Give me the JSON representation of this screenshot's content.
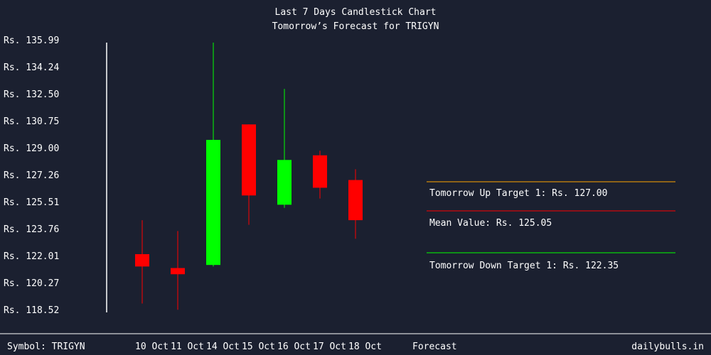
{
  "chart_data": {
    "type": "candlestick",
    "title": "Last 7 Days Candlestick Chart",
    "subtitle": "Tomorrow’s Forecast for TRIGYN",
    "y_ticks": [
      "Rs. 135.99",
      "Rs. 134.24",
      "Rs. 132.50",
      "Rs. 130.75",
      "Rs. 129.00",
      "Rs. 127.26",
      "Rs. 125.51",
      "Rs. 123.76",
      "Rs. 122.01",
      "Rs. 120.27",
      "Rs. 118.52"
    ],
    "ylim": [
      118.52,
      135.99
    ],
    "categories": [
      "10 Oct",
      "11 Oct",
      "14 Oct",
      "15 Oct",
      "16 Oct",
      "17 Oct",
      "18 Oct"
    ],
    "candles": [
      {
        "date": "10 Oct",
        "open": 122.2,
        "high": 124.4,
        "low": 119.0,
        "close": 121.4
      },
      {
        "date": "11 Oct",
        "open": 121.3,
        "high": 123.7,
        "low": 118.6,
        "close": 120.9
      },
      {
        "date": "14 Oct",
        "open": 121.5,
        "high": 135.9,
        "low": 121.4,
        "close": 129.6
      },
      {
        "date": "15 Oct",
        "open": 130.6,
        "high": 130.6,
        "low": 124.1,
        "close": 126.0
      },
      {
        "date": "16 Oct",
        "open": 125.4,
        "high": 132.9,
        "low": 125.2,
        "close": 128.3
      },
      {
        "date": "17 Oct",
        "open": 128.6,
        "high": 128.9,
        "low": 125.8,
        "close": 126.5
      },
      {
        "date": "18 Oct",
        "open": 127.0,
        "high": 127.7,
        "low": 123.2,
        "close": 124.4
      }
    ],
    "forecast": {
      "label": "Forecast",
      "up": {
        "text": "Tomorrow Up Target 1: Rs. 127.00",
        "value": 127.0,
        "color": "#ffa500"
      },
      "mean": {
        "text": "Mean Value: Rs. 125.05",
        "value": 125.05,
        "color": "#ff0000"
      },
      "down": {
        "text": "Tomorrow Down Target 1: Rs. 122.35",
        "value": 122.35,
        "color": "#00ff00"
      }
    },
    "colors": {
      "up": "#00ff00",
      "down": "#ff0000",
      "axis": "#ffffff"
    }
  },
  "footer": {
    "symbol": "Symbol: TRIGYN",
    "site": "dailybulls.in"
  }
}
